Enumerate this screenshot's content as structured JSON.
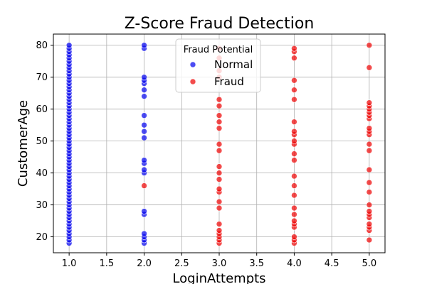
{
  "chart_data": {
    "type": "scatter",
    "title": "Z-Score Fraud Detection",
    "xlabel": "LoginAttempts",
    "ylabel": "CustomerAge",
    "xlim": [
      0.79,
      5.21
    ],
    "ylim": [
      15,
      83.5
    ],
    "xticks": [
      1.0,
      1.5,
      2.0,
      2.5,
      3.0,
      3.5,
      4.0,
      4.5,
      5.0
    ],
    "xtick_labels": [
      "1.0",
      "1.5",
      "2.0",
      "2.5",
      "3.0",
      "3.5",
      "4.0",
      "4.5",
      "5.0"
    ],
    "yticks": [
      20,
      30,
      40,
      50,
      60,
      70,
      80
    ],
    "ytick_labels": [
      "20",
      "30",
      "40",
      "50",
      "60",
      "70",
      "80"
    ],
    "grid": true,
    "legend": {
      "title": "Fraud Potential",
      "position": "top-center"
    },
    "series": [
      {
        "name": "Normal",
        "color": "#0000ee",
        "points": [
          {
            "x": 1,
            "y": 18
          },
          {
            "x": 1,
            "y": 19
          },
          {
            "x": 1,
            "y": 20
          },
          {
            "x": 1,
            "y": 21
          },
          {
            "x": 1,
            "y": 22
          },
          {
            "x": 1,
            "y": 23
          },
          {
            "x": 1,
            "y": 24
          },
          {
            "x": 1,
            "y": 25
          },
          {
            "x": 1,
            "y": 26
          },
          {
            "x": 1,
            "y": 27
          },
          {
            "x": 1,
            "y": 28
          },
          {
            "x": 1,
            "y": 29
          },
          {
            "x": 1,
            "y": 30
          },
          {
            "x": 1,
            "y": 31
          },
          {
            "x": 1,
            "y": 32
          },
          {
            "x": 1,
            "y": 33
          },
          {
            "x": 1,
            "y": 34
          },
          {
            "x": 1,
            "y": 35
          },
          {
            "x": 1,
            "y": 36
          },
          {
            "x": 1,
            "y": 37
          },
          {
            "x": 1,
            "y": 38
          },
          {
            "x": 1,
            "y": 39
          },
          {
            "x": 1,
            "y": 40
          },
          {
            "x": 1,
            "y": 41
          },
          {
            "x": 1,
            "y": 42
          },
          {
            "x": 1,
            "y": 43
          },
          {
            "x": 1,
            "y": 44
          },
          {
            "x": 1,
            "y": 45
          },
          {
            "x": 1,
            "y": 46
          },
          {
            "x": 1,
            "y": 47
          },
          {
            "x": 1,
            "y": 48
          },
          {
            "x": 1,
            "y": 49
          },
          {
            "x": 1,
            "y": 50
          },
          {
            "x": 1,
            "y": 51
          },
          {
            "x": 1,
            "y": 52
          },
          {
            "x": 1,
            "y": 53
          },
          {
            "x": 1,
            "y": 54
          },
          {
            "x": 1,
            "y": 55
          },
          {
            "x": 1,
            "y": 56
          },
          {
            "x": 1,
            "y": 57
          },
          {
            "x": 1,
            "y": 58
          },
          {
            "x": 1,
            "y": 59
          },
          {
            "x": 1,
            "y": 60
          },
          {
            "x": 1,
            "y": 61
          },
          {
            "x": 1,
            "y": 62
          },
          {
            "x": 1,
            "y": 63
          },
          {
            "x": 1,
            "y": 64
          },
          {
            "x": 1,
            "y": 65
          },
          {
            "x": 1,
            "y": 66
          },
          {
            "x": 1,
            "y": 67
          },
          {
            "x": 1,
            "y": 68
          },
          {
            "x": 1,
            "y": 69
          },
          {
            "x": 1,
            "y": 70
          },
          {
            "x": 1,
            "y": 71
          },
          {
            "x": 1,
            "y": 72
          },
          {
            "x": 1,
            "y": 73
          },
          {
            "x": 1,
            "y": 74
          },
          {
            "x": 1,
            "y": 75
          },
          {
            "x": 1,
            "y": 76
          },
          {
            "x": 1,
            "y": 77
          },
          {
            "x": 1,
            "y": 78
          },
          {
            "x": 1,
            "y": 79
          },
          {
            "x": 1,
            "y": 80
          },
          {
            "x": 2,
            "y": 18
          },
          {
            "x": 2,
            "y": 19
          },
          {
            "x": 2,
            "y": 20
          },
          {
            "x": 2,
            "y": 21
          },
          {
            "x": 2,
            "y": 27
          },
          {
            "x": 2,
            "y": 28
          },
          {
            "x": 2,
            "y": 40
          },
          {
            "x": 2,
            "y": 41
          },
          {
            "x": 2,
            "y": 43
          },
          {
            "x": 2,
            "y": 44
          },
          {
            "x": 2,
            "y": 51
          },
          {
            "x": 2,
            "y": 53
          },
          {
            "x": 2,
            "y": 55
          },
          {
            "x": 2,
            "y": 58
          },
          {
            "x": 2,
            "y": 64
          },
          {
            "x": 2,
            "y": 66
          },
          {
            "x": 2,
            "y": 68
          },
          {
            "x": 2,
            "y": 69
          },
          {
            "x": 2,
            "y": 70
          },
          {
            "x": 2,
            "y": 79
          },
          {
            "x": 2,
            "y": 80
          }
        ]
      },
      {
        "name": "Fraud",
        "color": "#ee0000",
        "points": [
          {
            "x": 2,
            "y": 36
          },
          {
            "x": 3,
            "y": 18
          },
          {
            "x": 3,
            "y": 19
          },
          {
            "x": 3,
            "y": 20
          },
          {
            "x": 3,
            "y": 21
          },
          {
            "x": 3,
            "y": 22
          },
          {
            "x": 3,
            "y": 24
          },
          {
            "x": 3,
            "y": 29
          },
          {
            "x": 3,
            "y": 31
          },
          {
            "x": 3,
            "y": 34
          },
          {
            "x": 3,
            "y": 35
          },
          {
            "x": 3,
            "y": 38
          },
          {
            "x": 3,
            "y": 40
          },
          {
            "x": 3,
            "y": 42
          },
          {
            "x": 3,
            "y": 47
          },
          {
            "x": 3,
            "y": 49
          },
          {
            "x": 3,
            "y": 54
          },
          {
            "x": 3,
            "y": 56
          },
          {
            "x": 3,
            "y": 58
          },
          {
            "x": 3,
            "y": 61
          },
          {
            "x": 3,
            "y": 63
          },
          {
            "x": 3,
            "y": 70
          },
          {
            "x": 3,
            "y": 72
          },
          {
            "x": 3,
            "y": 76
          },
          {
            "x": 3,
            "y": 79
          },
          {
            "x": 4,
            "y": 18
          },
          {
            "x": 4,
            "y": 19
          },
          {
            "x": 4,
            "y": 20
          },
          {
            "x": 4,
            "y": 23
          },
          {
            "x": 4,
            "y": 24
          },
          {
            "x": 4,
            "y": 25
          },
          {
            "x": 4,
            "y": 27
          },
          {
            "x": 4,
            "y": 29
          },
          {
            "x": 4,
            "y": 33
          },
          {
            "x": 4,
            "y": 36
          },
          {
            "x": 4,
            "y": 39
          },
          {
            "x": 4,
            "y": 44
          },
          {
            "x": 4,
            "y": 46
          },
          {
            "x": 4,
            "y": 49
          },
          {
            "x": 4,
            "y": 50
          },
          {
            "x": 4,
            "y": 52
          },
          {
            "x": 4,
            "y": 53
          },
          {
            "x": 4,
            "y": 56
          },
          {
            "x": 4,
            "y": 63
          },
          {
            "x": 4,
            "y": 66
          },
          {
            "x": 4,
            "y": 69
          },
          {
            "x": 4,
            "y": 76
          },
          {
            "x": 4,
            "y": 78
          },
          {
            "x": 4,
            "y": 79
          },
          {
            "x": 5,
            "y": 19
          },
          {
            "x": 5,
            "y": 22
          },
          {
            "x": 5,
            "y": 23
          },
          {
            "x": 5,
            "y": 24
          },
          {
            "x": 5,
            "y": 26
          },
          {
            "x": 5,
            "y": 27
          },
          {
            "x": 5,
            "y": 28
          },
          {
            "x": 5,
            "y": 30
          },
          {
            "x": 5,
            "y": 34
          },
          {
            "x": 5,
            "y": 37
          },
          {
            "x": 5,
            "y": 41
          },
          {
            "x": 5,
            "y": 47
          },
          {
            "x": 5,
            "y": 49
          },
          {
            "x": 5,
            "y": 52
          },
          {
            "x": 5,
            "y": 53
          },
          {
            "x": 5,
            "y": 54
          },
          {
            "x": 5,
            "y": 57
          },
          {
            "x": 5,
            "y": 58
          },
          {
            "x": 5,
            "y": 59
          },
          {
            "x": 5,
            "y": 60
          },
          {
            "x": 5,
            "y": 61
          },
          {
            "x": 5,
            "y": 62
          },
          {
            "x": 5,
            "y": 73
          },
          {
            "x": 5,
            "y": 80
          }
        ]
      }
    ]
  }
}
